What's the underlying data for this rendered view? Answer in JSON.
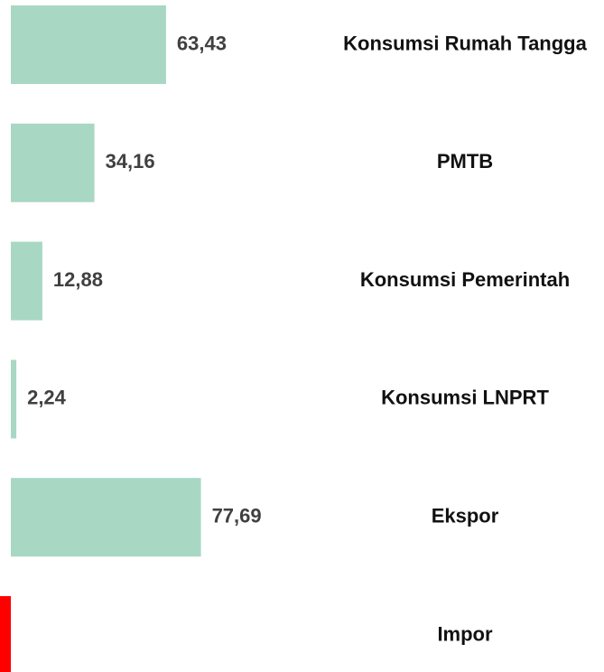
{
  "chart_data": {
    "type": "barh",
    "categories": [
      "Konsumsi Rumah Tangga",
      "PMTB",
      "Konsumsi Pemerintah",
      "Konsumsi LNPRT",
      "Ekspor",
      "Impor"
    ],
    "values": [
      63.43,
      34.16,
      12.88,
      2.24,
      77.69,
      -4.43
    ],
    "value_labels": [
      "63,43",
      "34,16",
      "12,88",
      "2,24",
      "77,69",
      null
    ],
    "colors": [
      "#a8d8c4",
      "#a8d8c4",
      "#a8d8c4",
      "#a8d8c4",
      "#a8d8c4",
      "#ff0000"
    ],
    "xlim": [
      -4.43,
      242.4
    ]
  }
}
